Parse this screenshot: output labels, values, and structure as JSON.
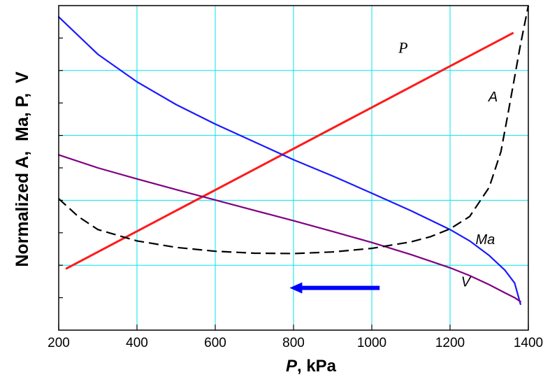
{
  "chart_data": {
    "type": "line",
    "xlabel_var": "P",
    "xlabel_unit": ", kPa",
    "ylabel": "Normalized A,  Ma, P,  V",
    "xlim": [
      1400,
      200
    ],
    "x_ticks": [
      200,
      400,
      600,
      800,
      1000,
      1200,
      1400
    ],
    "y_tick_count": 9,
    "grid": true,
    "series": [
      {
        "name": "P",
        "color": "#ff1a1a",
        "style": "solid",
        "points": [
          [
            220,
            0.19
          ],
          [
            1360,
            0.915
          ]
        ]
      },
      {
        "name": "Ma",
        "color": "#1a1aff",
        "style": "solid",
        "points": [
          [
            200,
            0.965
          ],
          [
            300,
            0.85
          ],
          [
            400,
            0.765
          ],
          [
            500,
            0.695
          ],
          [
            600,
            0.635
          ],
          [
            700,
            0.58
          ],
          [
            800,
            0.525
          ],
          [
            900,
            0.475
          ],
          [
            1000,
            0.422
          ],
          [
            1100,
            0.368
          ],
          [
            1200,
            0.31
          ],
          [
            1250,
            0.275
          ],
          [
            1300,
            0.23
          ],
          [
            1340,
            0.185
          ],
          [
            1365,
            0.145
          ],
          [
            1380,
            0.08
          ]
        ]
      },
      {
        "name": "V",
        "color": "#800080",
        "style": "solid",
        "points": [
          [
            200,
            0.54
          ],
          [
            300,
            0.5
          ],
          [
            400,
            0.466
          ],
          [
            500,
            0.433
          ],
          [
            600,
            0.401
          ],
          [
            700,
            0.369
          ],
          [
            800,
            0.337
          ],
          [
            900,
            0.304
          ],
          [
            1000,
            0.27
          ],
          [
            1100,
            0.233
          ],
          [
            1200,
            0.192
          ],
          [
            1250,
            0.168
          ],
          [
            1300,
            0.14
          ],
          [
            1340,
            0.115
          ],
          [
            1365,
            0.1
          ],
          [
            1380,
            0.088
          ]
        ]
      },
      {
        "name": "A",
        "color": "#000000",
        "style": "dashed",
        "points": [
          [
            200,
            0.405
          ],
          [
            250,
            0.35
          ],
          [
            300,
            0.31
          ],
          [
            400,
            0.275
          ],
          [
            500,
            0.255
          ],
          [
            600,
            0.243
          ],
          [
            700,
            0.237
          ],
          [
            800,
            0.236
          ],
          [
            900,
            0.241
          ],
          [
            1000,
            0.252
          ],
          [
            1100,
            0.272
          ],
          [
            1150,
            0.288
          ],
          [
            1200,
            0.312
          ],
          [
            1250,
            0.35
          ],
          [
            1300,
            0.44
          ],
          [
            1330,
            0.55
          ],
          [
            1350,
            0.68
          ],
          [
            1365,
            0.78
          ],
          [
            1380,
            0.88
          ],
          [
            1390,
            0.94
          ],
          [
            1400,
            1.0
          ]
        ]
      }
    ],
    "annotations": [
      {
        "text": "P",
        "x": 1080,
        "y": 0.855,
        "style": "serif"
      },
      {
        "text": "A",
        "x": 1310,
        "y": 0.705,
        "style": "sans"
      },
      {
        "text": "Ma",
        "x": 1290,
        "y": 0.265,
        "style": "sans"
      },
      {
        "text": "V",
        "x": 1240,
        "y": 0.135,
        "style": "sans"
      }
    ],
    "arrow": {
      "direction": "toward-lower-P",
      "color": "#0000ff",
      "from_x": 1020,
      "to_x": 790,
      "y": 0.13
    }
  }
}
